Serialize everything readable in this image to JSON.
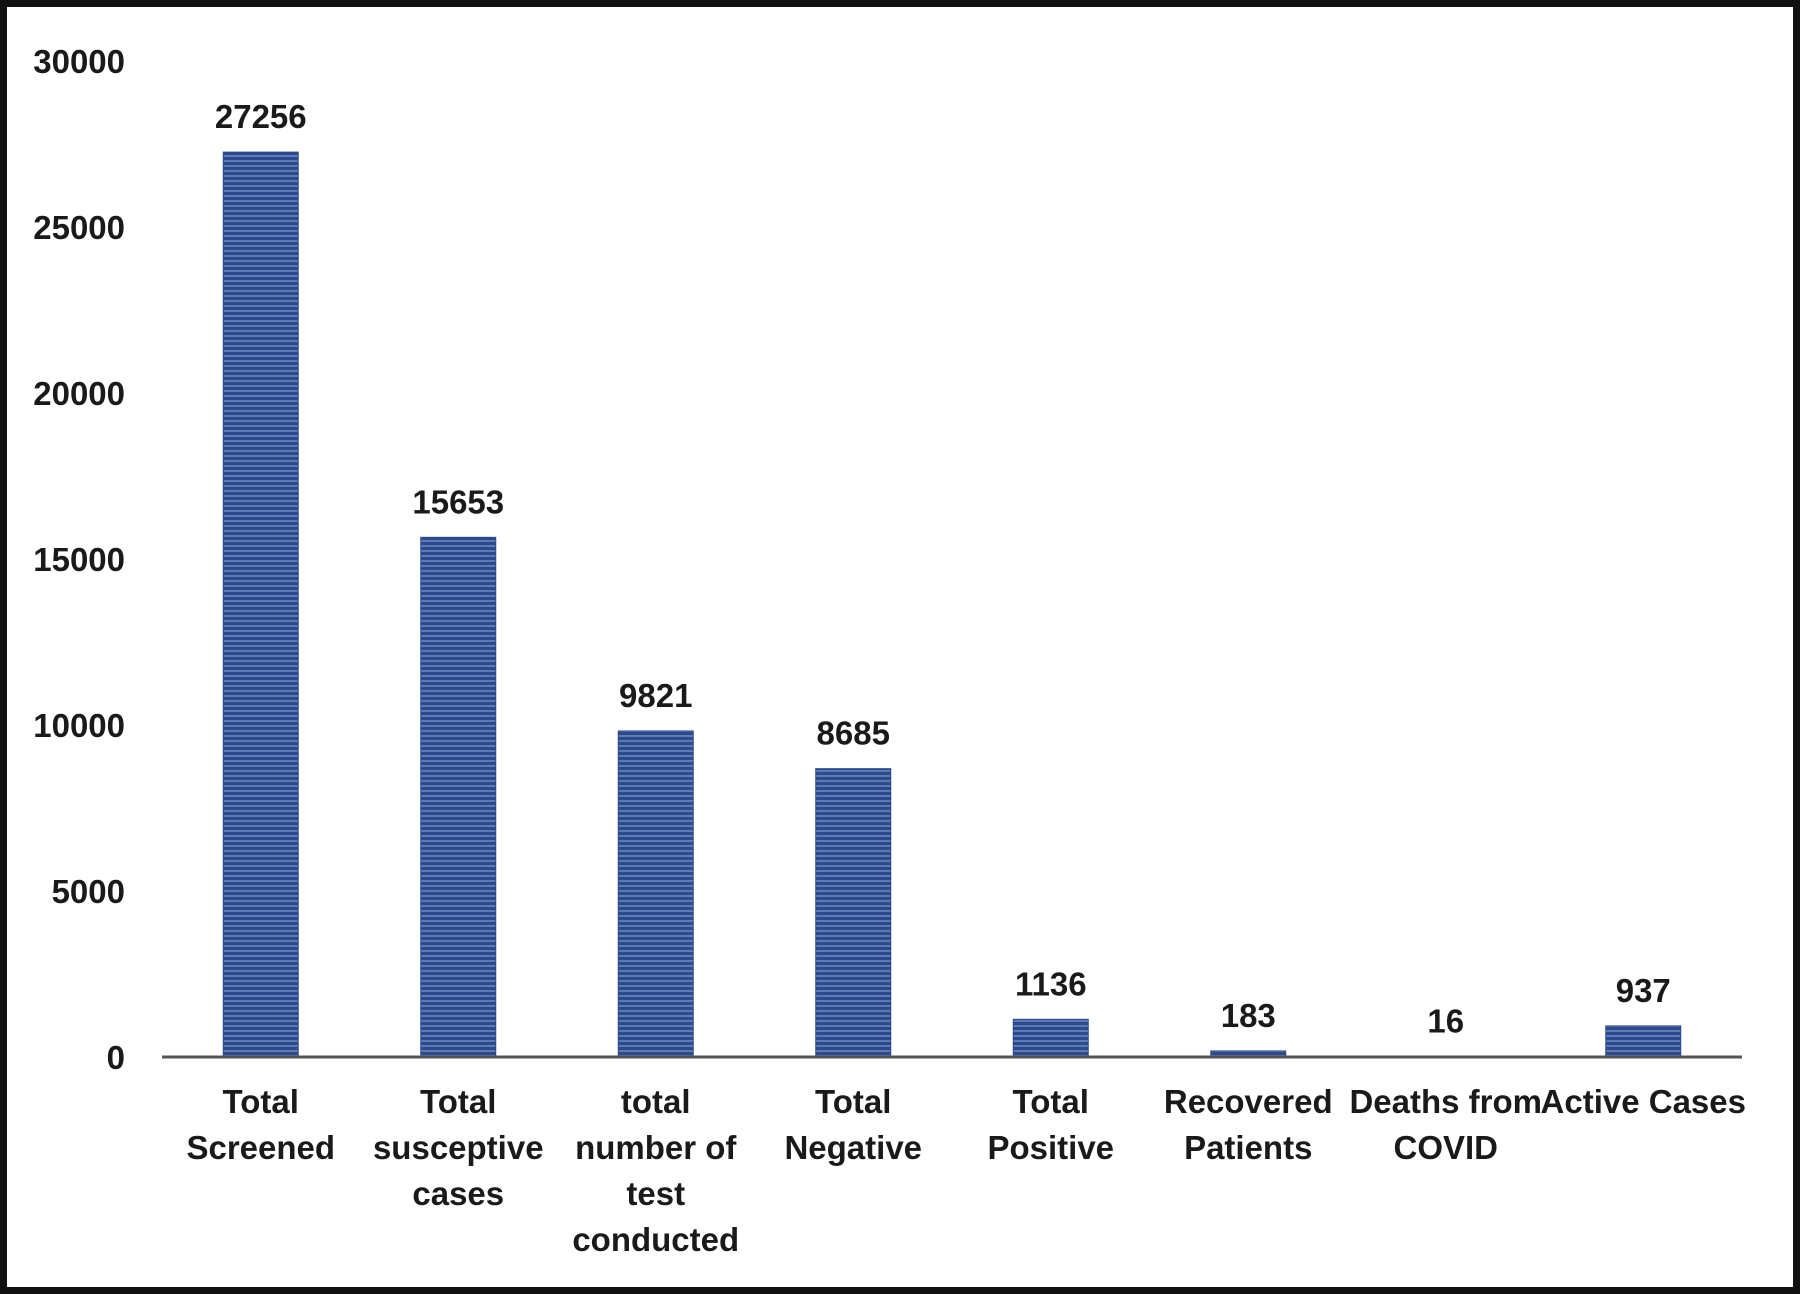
{
  "chart_data": {
    "type": "bar",
    "title": "",
    "xlabel": "",
    "ylabel": "",
    "ylim": [
      0,
      30000
    ],
    "y_ticks": [
      0,
      5000,
      10000,
      15000,
      20000,
      25000,
      30000
    ],
    "grid": false,
    "legend": "none",
    "bar_color": "#2c4a8c",
    "categories": [
      [
        "Total",
        "Screened"
      ],
      [
        "Total",
        "susceptive",
        "cases"
      ],
      [
        "total",
        "number of",
        "test",
        "conducted"
      ],
      [
        "Total",
        "Negative"
      ],
      [
        "Total",
        "Positive"
      ],
      [
        "Recovered",
        "Patients"
      ],
      [
        "Deaths from",
        "COVID"
      ],
      [
        "Active Cases"
      ]
    ],
    "values": [
      27256,
      15653,
      9821,
      8685,
      1136,
      183,
      16,
      937
    ],
    "data_labels": [
      "27256",
      "15653",
      "9821",
      "8685",
      "1136",
      "183",
      "16",
      "937"
    ]
  }
}
